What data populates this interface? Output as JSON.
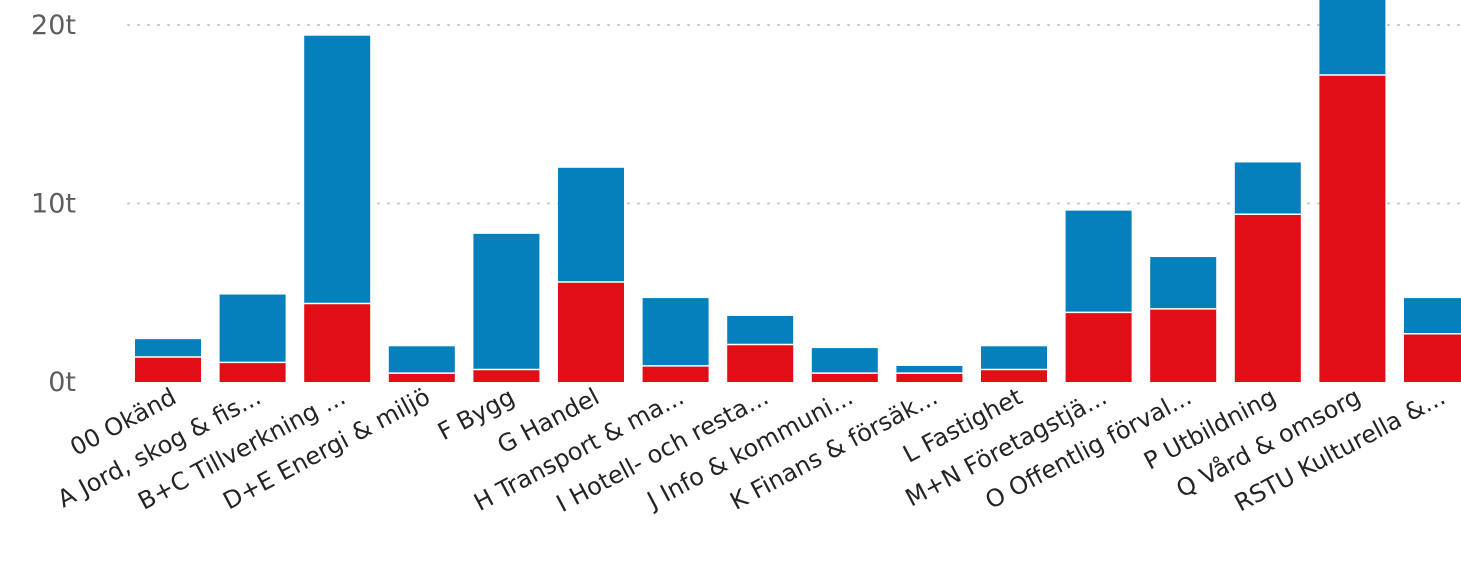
{
  "chart_data": {
    "type": "bar",
    "stacked": true,
    "categories": [
      "00 Okänd",
      "A Jord, skog & fis...",
      "B+C Tillverkning ...",
      "D+E Energi & miljö",
      "F Bygg",
      "G Handel",
      "H Transport & ma...",
      "I Hotell- och resta...",
      "J Info & kommuni...",
      "K Finans & försäk...",
      "L Fastighet",
      "M+N Företagstjä...",
      "O Offentlig förval...",
      "P Utbildning",
      "Q Vård & omsorg",
      "RSTU Kulturella &..."
    ],
    "series": [
      {
        "color": "#e10e16",
        "values": [
          1.4,
          1.1,
          4.4,
          0.5,
          0.7,
          5.6,
          0.9,
          2.1,
          0.5,
          0.5,
          0.7,
          3.9,
          4.1,
          9.4,
          17.2,
          2.7
        ]
      },
      {
        "color": "#0580bd",
        "values": [
          1.0,
          3.8,
          15.0,
          1.5,
          7.6,
          6.4,
          3.8,
          1.6,
          1.4,
          0.4,
          1.3,
          5.7,
          2.9,
          2.9,
          6.1,
          2.0
        ]
      }
    ],
    "y_ticks": [
      {
        "value": 0,
        "label": "0t"
      },
      {
        "value": 10,
        "label": "10t"
      },
      {
        "value": 20,
        "label": "20t"
      }
    ],
    "ylim": [
      0,
      21.5
    ],
    "grid": true
  }
}
